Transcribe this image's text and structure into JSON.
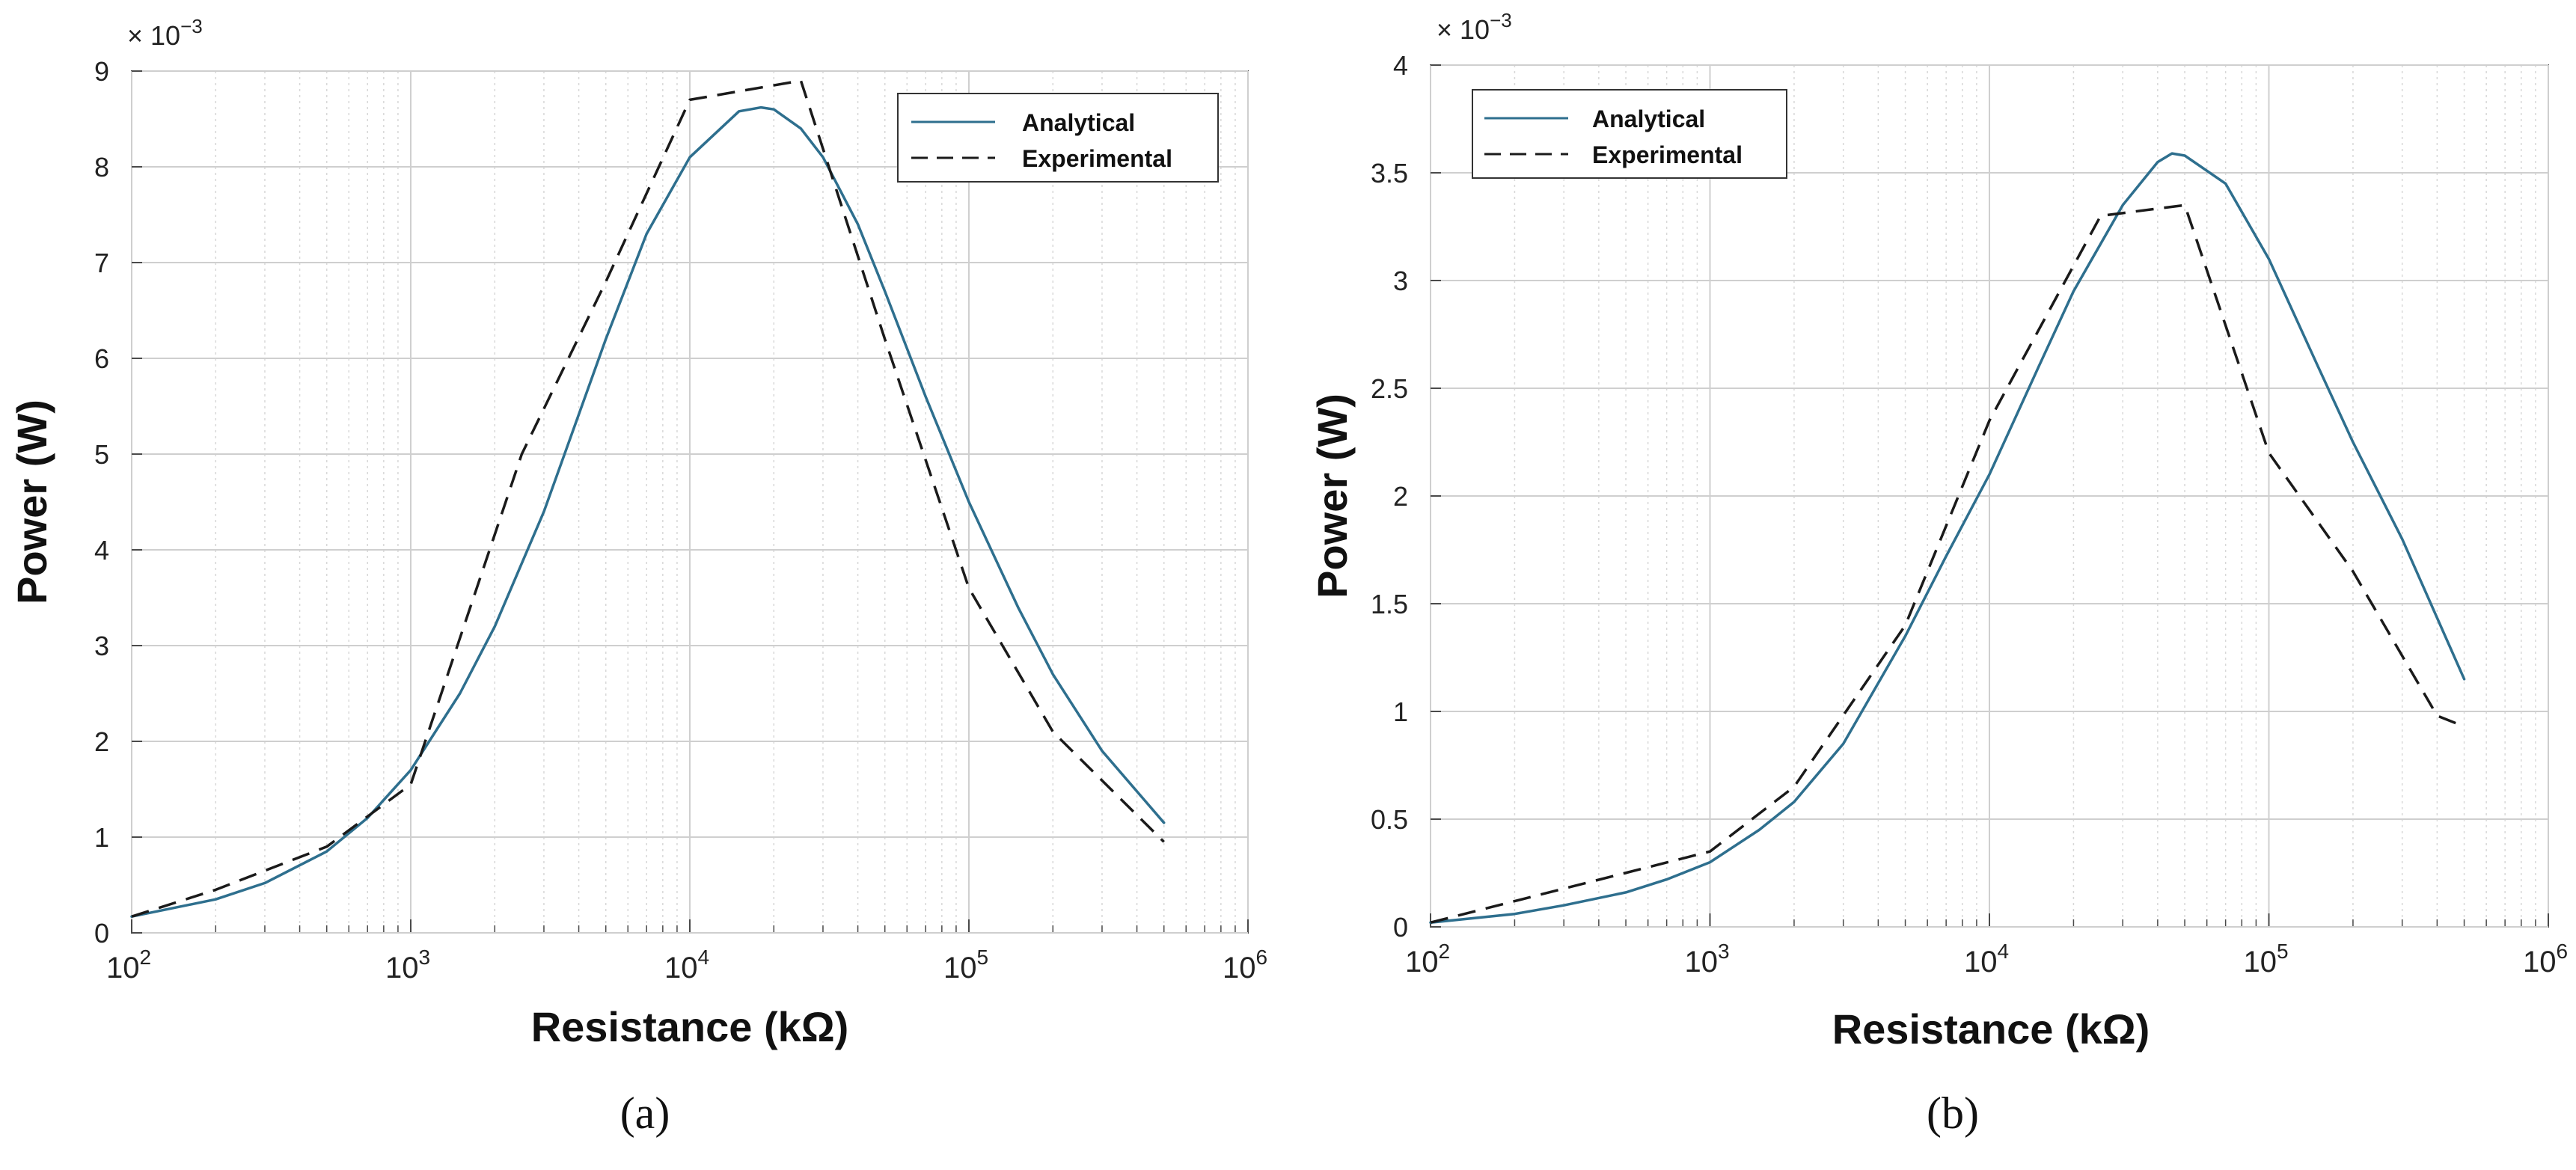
{
  "chart_data": [
    {
      "type": "line",
      "panel_label": "(a)",
      "xlabel": "Resistance (kΩ)",
      "ylabel": "Power (W)",
      "x_scale": "log",
      "xlim": [
        100,
        1000000
      ],
      "ylim": [
        0,
        9
      ],
      "y_exponent_label": "× 10",
      "y_exponent_power": "−3",
      "x_ticks": [
        {
          "value": 100,
          "base": "10",
          "exp": "2"
        },
        {
          "value": 1000,
          "base": "10",
          "exp": "3"
        },
        {
          "value": 10000,
          "base": "10",
          "exp": "4"
        },
        {
          "value": 100000,
          "base": "10",
          "exp": "5"
        },
        {
          "value": 1000000,
          "base": "10",
          "exp": "6"
        }
      ],
      "y_ticks": [
        0,
        1,
        2,
        3,
        4,
        5,
        6,
        7,
        8,
        9
      ],
      "y_tick_labels": [
        "0",
        "1",
        "2",
        "3",
        "4",
        "5",
        "6",
        "7",
        "8",
        "9"
      ],
      "grid": true,
      "legend_position": "top-right",
      "series": [
        {
          "name": "Analytical",
          "style": "solid",
          "color": "#2e6f8e",
          "x": [
            100,
            200,
            300,
            500,
            700,
            1000,
            1500,
            2000,
            3000,
            5000,
            7000,
            10000,
            15000,
            18000,
            20000,
            25000,
            30000,
            40000,
            50000,
            70000,
            100000,
            150000,
            200000,
            300000,
            500000
          ],
          "y": [
            0.17,
            0.35,
            0.52,
            0.85,
            1.2,
            1.7,
            2.5,
            3.2,
            4.4,
            6.2,
            7.3,
            8.1,
            8.58,
            8.62,
            8.6,
            8.4,
            8.1,
            7.4,
            6.7,
            5.6,
            4.5,
            3.4,
            2.7,
            1.9,
            1.15
          ]
        },
        {
          "name": "Experimental",
          "style": "dashed",
          "color": "#1a1a1a",
          "x": [
            100,
            200,
            500,
            1000,
            2500,
            5000,
            10000,
            25000,
            50000,
            100000,
            200000,
            500000
          ],
          "y": [
            0.17,
            0.45,
            0.9,
            1.55,
            5.0,
            6.8,
            8.7,
            8.9,
            6.2,
            3.6,
            2.1,
            0.95
          ]
        }
      ]
    },
    {
      "type": "line",
      "panel_label": "(b)",
      "xlabel": "Resistance (kΩ)",
      "ylabel": "Power (W)",
      "x_scale": "log",
      "xlim": [
        100,
        1000000
      ],
      "ylim": [
        0,
        4
      ],
      "y_exponent_label": "× 10",
      "y_exponent_power": "−3",
      "x_ticks": [
        {
          "value": 100,
          "base": "10",
          "exp": "2"
        },
        {
          "value": 1000,
          "base": "10",
          "exp": "3"
        },
        {
          "value": 10000,
          "base": "10",
          "exp": "4"
        },
        {
          "value": 100000,
          "base": "10",
          "exp": "5"
        },
        {
          "value": 1000000,
          "base": "10",
          "exp": "6"
        }
      ],
      "y_ticks": [
        0,
        0.5,
        1,
        1.5,
        2,
        2.5,
        3,
        3.5,
        4
      ],
      "y_tick_labels": [
        "0",
        "0.5",
        "1",
        "1.5",
        "2",
        "2.5",
        "3",
        "3.5",
        "4"
      ],
      "grid": true,
      "legend_position": "top-left",
      "series": [
        {
          "name": "Analytical",
          "style": "solid",
          "color": "#2e6f8e",
          "x": [
            100,
            200,
            300,
            500,
            700,
            1000,
            1500,
            2000,
            3000,
            5000,
            7000,
            10000,
            15000,
            20000,
            30000,
            40000,
            45000,
            50000,
            70000,
            100000,
            150000,
            200000,
            300000,
            500000
          ],
          "y": [
            0.02,
            0.06,
            0.1,
            0.16,
            0.22,
            0.3,
            0.45,
            0.58,
            0.85,
            1.35,
            1.72,
            2.1,
            2.6,
            2.95,
            3.35,
            3.55,
            3.59,
            3.58,
            3.45,
            3.1,
            2.6,
            2.25,
            1.8,
            1.15
          ]
        },
        {
          "name": "Experimental",
          "style": "dashed",
          "color": "#1a1a1a",
          "x": [
            100,
            1000,
            2000,
            5000,
            10000,
            25000,
            50000,
            100000,
            200000,
            400000,
            500000
          ],
          "y": [
            0.02,
            0.35,
            0.65,
            1.4,
            2.35,
            3.3,
            3.35,
            2.2,
            1.65,
            0.98,
            0.93
          ]
        }
      ]
    }
  ]
}
